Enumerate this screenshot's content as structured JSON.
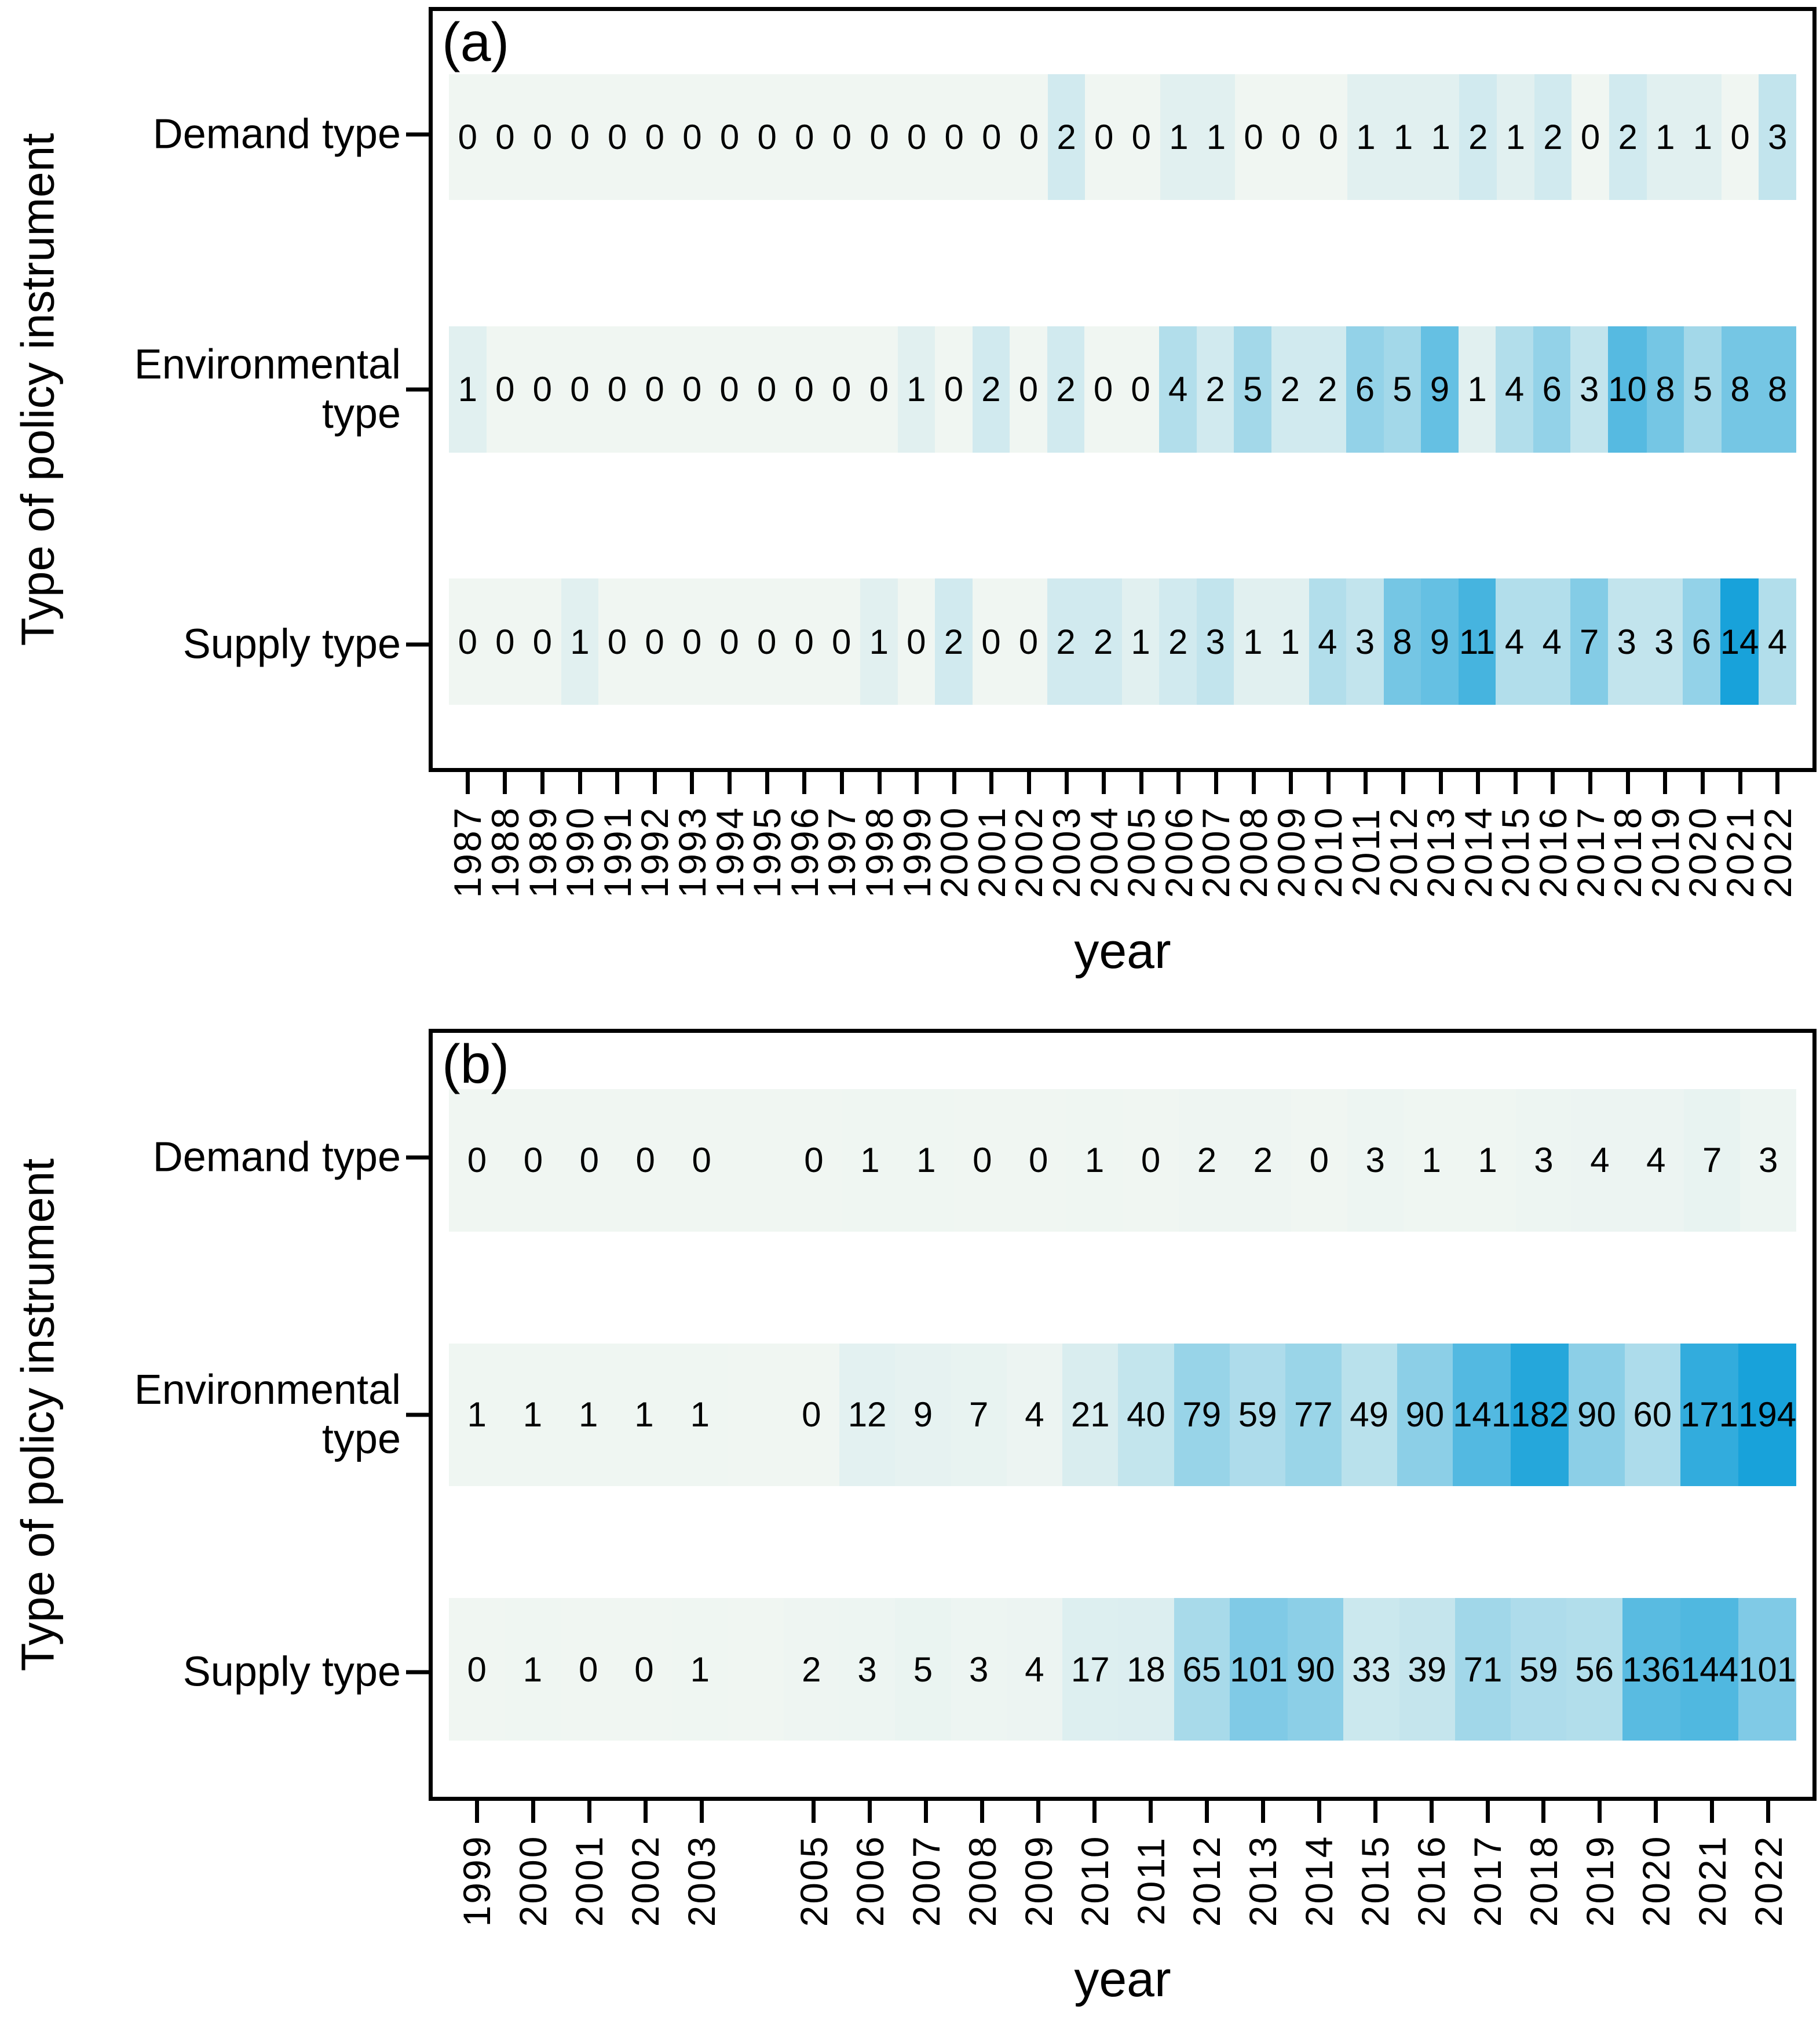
{
  "chart_data": [
    {
      "type": "heatmap",
      "panel_label": "(a)",
      "xlabel": "year",
      "ylabel": "Type of policy instrument",
      "x": [
        "1987",
        "1988",
        "1989",
        "1990",
        "1991",
        "1992",
        "1993",
        "1994",
        "1995",
        "1996",
        "1997",
        "1998",
        "1999",
        "2000",
        "2001",
        "2002",
        "2003",
        "2004",
        "2005",
        "2006",
        "2007",
        "2008",
        "2009",
        "2010",
        "2011",
        "2012",
        "2013",
        "2014",
        "2015",
        "2016",
        "2017",
        "2018",
        "2019",
        "2020",
        "2021",
        "2022"
      ],
      "rows": [
        "Demand type",
        "Environmental type",
        "Supply type"
      ],
      "row_label_lines": [
        [
          "Demand type"
        ],
        [
          "Environmental",
          "type"
        ],
        [
          "Supply type"
        ]
      ],
      "series": [
        {
          "name": "Demand type",
          "values": [
            0,
            0,
            0,
            0,
            0,
            0,
            0,
            0,
            0,
            0,
            0,
            0,
            0,
            0,
            0,
            0,
            2,
            0,
            0,
            1,
            1,
            0,
            0,
            0,
            1,
            1,
            1,
            2,
            1,
            2,
            0,
            2,
            1,
            1,
            0,
            3
          ]
        },
        {
          "name": "Environmental type",
          "values": [
            1,
            0,
            0,
            0,
            0,
            0,
            0,
            0,
            0,
            0,
            0,
            0,
            1,
            0,
            2,
            0,
            2,
            0,
            0,
            4,
            2,
            5,
            2,
            2,
            6,
            5,
            9,
            1,
            4,
            6,
            3,
            10,
            8,
            5,
            8,
            8
          ]
        },
        {
          "name": "Supply type",
          "values": [
            0,
            0,
            0,
            1,
            0,
            0,
            0,
            0,
            0,
            0,
            0,
            1,
            0,
            2,
            0,
            0,
            2,
            2,
            1,
            2,
            3,
            1,
            1,
            4,
            3,
            8,
            9,
            11,
            4,
            4,
            7,
            3,
            3,
            6,
            14,
            4
          ]
        }
      ],
      "value_range": [
        0,
        14
      ],
      "color_low": "#f0f6f2",
      "color_high": "#18a2da",
      "legend": "none",
      "grid": false
    },
    {
      "type": "heatmap",
      "panel_label": "(b)",
      "xlabel": "year",
      "ylabel": "Type of policy instrument",
      "x": [
        "1999",
        "2000",
        "2001",
        "2002",
        "2003",
        "",
        "2005",
        "2006",
        "2007",
        "2008",
        "2009",
        "2010",
        "2011",
        "2012",
        "2013",
        "2014",
        "2015",
        "2016",
        "2017",
        "2018",
        "2019",
        "2020",
        "2021",
        "2022"
      ],
      "rows": [
        "Demand type",
        "Environmental type",
        "Supply type"
      ],
      "row_label_lines": [
        [
          "Demand type"
        ],
        [
          "Environmental",
          "type"
        ],
        [
          "Supply type"
        ]
      ],
      "series": [
        {
          "name": "Demand type",
          "values": [
            0,
            0,
            0,
            0,
            0,
            null,
            0,
            1,
            1,
            0,
            0,
            1,
            0,
            2,
            2,
            0,
            3,
            1,
            1,
            3,
            4,
            4,
            7,
            3
          ]
        },
        {
          "name": "Environmental type",
          "values": [
            1,
            1,
            1,
            1,
            1,
            null,
            0,
            12,
            9,
            7,
            4,
            21,
            40,
            79,
            59,
            77,
            49,
            90,
            141,
            182,
            90,
            60,
            171,
            194
          ]
        },
        {
          "name": "Supply type",
          "values": [
            0,
            1,
            0,
            0,
            1,
            null,
            2,
            3,
            5,
            3,
            4,
            17,
            18,
            65,
            101,
            90,
            33,
            39,
            71,
            59,
            56,
            136,
            144,
            101
          ]
        }
      ],
      "value_range": [
        0,
        194
      ],
      "color_low": "#f0f6f2",
      "color_high": "#18a2da",
      "legend": "none",
      "grid": false
    }
  ]
}
